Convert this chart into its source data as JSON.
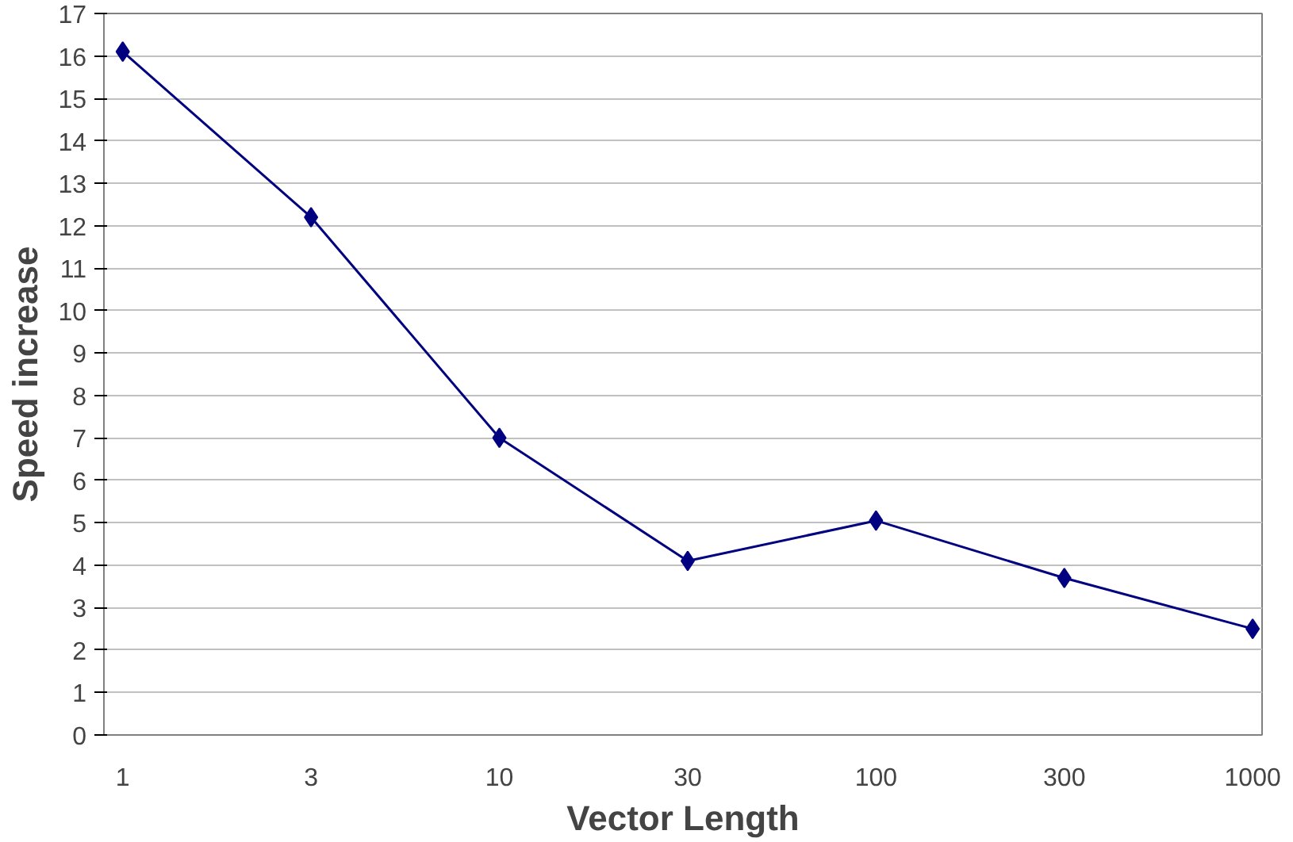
{
  "chart_data": {
    "type": "line",
    "xlabel": "Vector Length",
    "ylabel": "Speed increase",
    "categories": [
      "1",
      "3",
      "10",
      "30",
      "100",
      "300",
      "1000"
    ],
    "series": [
      {
        "color": "#000080",
        "values": [
          16.1,
          12.2,
          7.0,
          4.1,
          5.05,
          3.7,
          2.5
        ]
      }
    ],
    "ylim": [
      0,
      17
    ],
    "yticks": [
      0,
      1,
      2,
      3,
      4,
      5,
      6,
      7,
      8,
      9,
      10,
      11,
      12,
      13,
      14,
      15,
      16,
      17
    ],
    "grid": "y",
    "marker": "diamond",
    "line_style": "solid"
  }
}
